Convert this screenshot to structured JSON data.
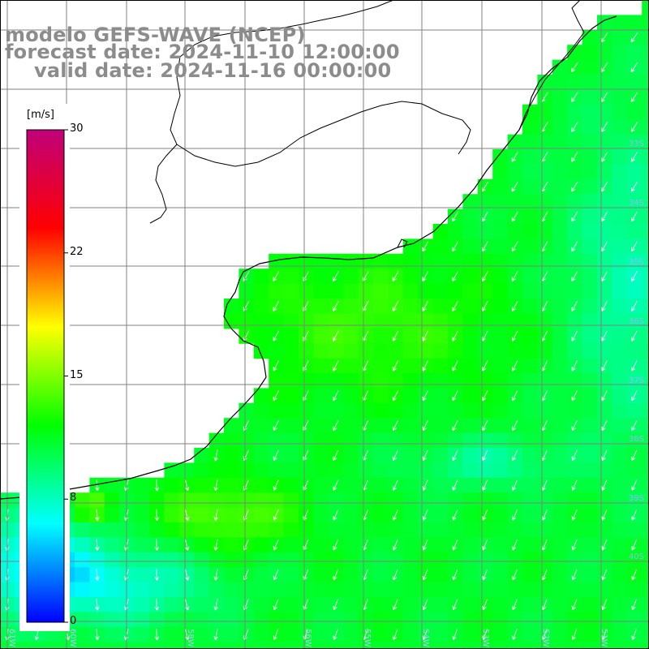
{
  "title": {
    "line1": "modelo GEFS-WAVE (NCEP)",
    "line2": "forecast date: 2024-11-10 12:00:00",
    "line3": "valid date: 2024-11-16 00:00:00"
  },
  "colorbar": {
    "unit": "[m/s]",
    "min": 0,
    "max": 30,
    "ticks": [
      {
        "label": "30",
        "value": 30
      },
      {
        "label": "22",
        "value": 22.5
      },
      {
        "label": "15",
        "value": 15
      },
      {
        "label": "8",
        "value": 7.5
      },
      {
        "label": "0",
        "value": 0
      }
    ],
    "colors": [
      "#0000ff",
      "#00ffff",
      "#00ff00",
      "#ffff00",
      "#ff0000",
      "#c0007a"
    ]
  },
  "map": {
    "lat_labels": [
      "33S",
      "34S",
      "35S",
      "36S",
      "37S",
      "38S",
      "39S",
      "40S"
    ],
    "lon_labels": [
      "61W",
      "60W",
      "58W",
      "56W",
      "55W",
      "54W",
      "53W",
      "52W",
      "51W"
    ],
    "land_color": "#ffffff",
    "grid_color": "#808080"
  }
}
